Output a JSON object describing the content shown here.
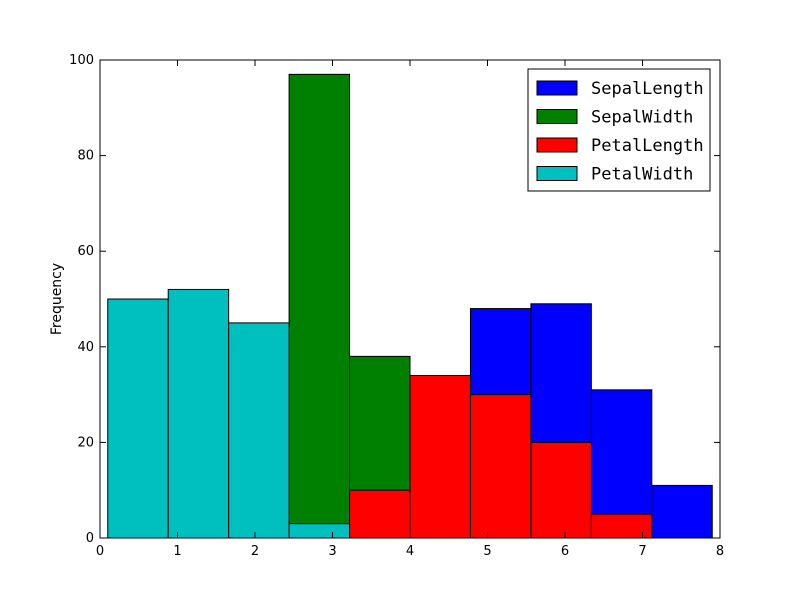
{
  "chart_data": {
    "type": "bar",
    "title": "",
    "xlabel": "",
    "ylabel": "Frequency",
    "xlim": [
      0,
      8
    ],
    "ylim": [
      0,
      100
    ],
    "xticks": [
      0,
      1,
      2,
      3,
      4,
      5,
      6,
      7,
      8
    ],
    "yticks": [
      0,
      20,
      40,
      60,
      80,
      100
    ],
    "grid": false,
    "legend_position": "top-right",
    "bin_edges": [
      0.1,
      0.88,
      1.66,
      2.44,
      3.22,
      4.0,
      4.78,
      5.56,
      6.34,
      7.12,
      7.9
    ],
    "series": [
      {
        "name": "SepalLength",
        "color": "#0000ff",
        "values": [
          0,
          0,
          0,
          0,
          0,
          0,
          48,
          49,
          31,
          11
        ]
      },
      {
        "name": "SepalWidth",
        "color": "#008000",
        "values": [
          0,
          0,
          0,
          97,
          38,
          0,
          0,
          0,
          0,
          0
        ]
      },
      {
        "name": "PetalLength",
        "color": "#ff0000",
        "values": [
          0,
          0,
          0,
          0,
          10,
          34,
          30,
          20,
          5,
          0
        ]
      },
      {
        "name": "PetalWidth",
        "color": "#00bfbf",
        "values": [
          50,
          52,
          45,
          3,
          0,
          0,
          0,
          0,
          0,
          0
        ]
      }
    ]
  }
}
